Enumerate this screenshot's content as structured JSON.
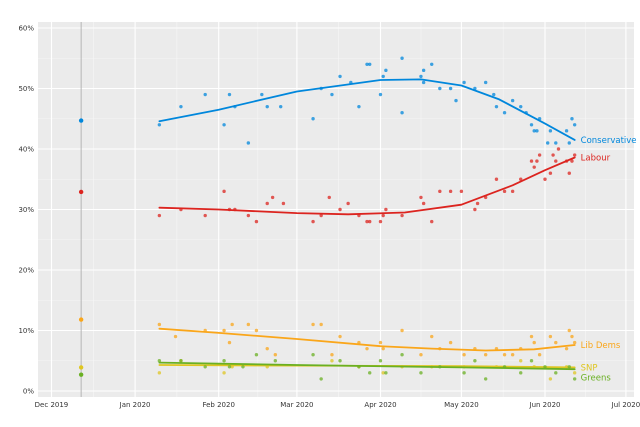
{
  "chart_data": {
    "type": "scatter",
    "title": "",
    "xlabel": "",
    "ylabel": "",
    "y_unit": "%",
    "ylim": [
      0,
      60
    ],
    "y_ticks": [
      0,
      10,
      20,
      30,
      40,
      50,
      60
    ],
    "y_tick_labels": [
      "0%",
      "10%",
      "20%",
      "30%",
      "40%",
      "50%",
      "60%"
    ],
    "xlim": [
      "2019-11-26",
      "2020-07-04"
    ],
    "x_ticks": [
      "2019-12-01",
      "2020-01-01",
      "2020-02-01",
      "2020-03-01",
      "2020-04-01",
      "2020-05-01",
      "2020-06-01",
      "2020-07-01"
    ],
    "x_tick_labels": [
      "Dec 2019",
      "Jan 2020",
      "Feb 2020",
      "Mar 2020",
      "Apr 2020",
      "May 2020",
      "Jun 2020",
      "Jul 2020"
    ],
    "reference_line": {
      "x": "2019-12-12"
    },
    "grid": true,
    "background": "#ebebeb",
    "series": [
      {
        "name": "Conservative",
        "color": "#0087dc",
        "result": {
          "x": "2019-12-12",
          "y": 44.7
        },
        "points": [
          [
            "2020-01-10",
            44
          ],
          [
            "2020-01-18",
            47
          ],
          [
            "2020-01-27",
            49
          ],
          [
            "2020-02-03",
            44
          ],
          [
            "2020-02-05",
            49
          ],
          [
            "2020-02-07",
            47
          ],
          [
            "2020-02-12",
            41
          ],
          [
            "2020-02-17",
            49
          ],
          [
            "2020-02-19",
            47
          ],
          [
            "2020-02-24",
            47
          ],
          [
            "2020-03-07",
            45
          ],
          [
            "2020-03-10",
            50
          ],
          [
            "2020-03-14",
            49
          ],
          [
            "2020-03-17",
            52
          ],
          [
            "2020-03-21",
            51
          ],
          [
            "2020-03-24",
            47
          ],
          [
            "2020-03-27",
            54
          ],
          [
            "2020-03-28",
            54
          ],
          [
            "2020-04-01",
            49
          ],
          [
            "2020-04-02",
            52
          ],
          [
            "2020-04-03",
            53
          ],
          [
            "2020-04-09",
            46
          ],
          [
            "2020-04-09",
            55
          ],
          [
            "2020-04-16",
            52
          ],
          [
            "2020-04-17",
            53
          ],
          [
            "2020-04-17",
            51
          ],
          [
            "2020-04-20",
            54
          ],
          [
            "2020-04-23",
            50
          ],
          [
            "2020-04-27",
            50
          ],
          [
            "2020-04-29",
            48
          ],
          [
            "2020-05-02",
            51
          ],
          [
            "2020-05-06",
            50
          ],
          [
            "2020-05-10",
            51
          ],
          [
            "2020-05-13",
            49
          ],
          [
            "2020-05-14",
            47
          ],
          [
            "2020-05-17",
            46
          ],
          [
            "2020-05-20",
            48
          ],
          [
            "2020-05-23",
            47
          ],
          [
            "2020-05-25",
            46
          ],
          [
            "2020-05-27",
            44
          ],
          [
            "2020-05-28",
            43
          ],
          [
            "2020-05-29",
            43
          ],
          [
            "2020-05-30",
            45
          ],
          [
            "2020-06-02",
            41
          ],
          [
            "2020-06-03",
            43
          ],
          [
            "2020-06-05",
            41
          ],
          [
            "2020-06-09",
            43
          ],
          [
            "2020-06-10",
            41
          ],
          [
            "2020-06-11",
            45
          ],
          [
            "2020-06-12",
            44
          ]
        ],
        "trend": [
          [
            "2020-01-10",
            44.6
          ],
          [
            "2020-02-01",
            46.5
          ],
          [
            "2020-03-01",
            49.5
          ],
          [
            "2020-04-01",
            51.4
          ],
          [
            "2020-04-16",
            51.5
          ],
          [
            "2020-05-01",
            50.5
          ],
          [
            "2020-05-15",
            48.2
          ],
          [
            "2020-06-01",
            44.2
          ],
          [
            "2020-06-12",
            41.5
          ]
        ]
      },
      {
        "name": "Labour",
        "color": "#dc241f",
        "result": {
          "x": "2019-12-12",
          "y": 32.9
        },
        "points": [
          [
            "2020-01-10",
            29
          ],
          [
            "2020-01-18",
            30
          ],
          [
            "2020-01-27",
            29
          ],
          [
            "2020-02-03",
            33
          ],
          [
            "2020-02-05",
            30
          ],
          [
            "2020-02-07",
            30
          ],
          [
            "2020-02-12",
            29
          ],
          [
            "2020-02-15",
            28
          ],
          [
            "2020-02-19",
            31
          ],
          [
            "2020-02-21",
            32
          ],
          [
            "2020-02-25",
            31
          ],
          [
            "2020-03-07",
            28
          ],
          [
            "2020-03-10",
            29
          ],
          [
            "2020-03-13",
            32
          ],
          [
            "2020-03-17",
            30
          ],
          [
            "2020-03-20",
            31
          ],
          [
            "2020-03-24",
            29
          ],
          [
            "2020-03-27",
            28
          ],
          [
            "2020-03-28",
            28
          ],
          [
            "2020-04-01",
            28
          ],
          [
            "2020-04-02",
            29
          ],
          [
            "2020-04-03",
            30
          ],
          [
            "2020-04-09",
            29
          ],
          [
            "2020-04-16",
            32
          ],
          [
            "2020-04-17",
            31
          ],
          [
            "2020-04-20",
            28
          ],
          [
            "2020-04-23",
            33
          ],
          [
            "2020-04-27",
            33
          ],
          [
            "2020-05-01",
            33
          ],
          [
            "2020-05-06",
            30
          ],
          [
            "2020-05-07",
            31
          ],
          [
            "2020-05-10",
            32
          ],
          [
            "2020-05-14",
            35
          ],
          [
            "2020-05-17",
            33
          ],
          [
            "2020-05-20",
            33
          ],
          [
            "2020-05-23",
            35
          ],
          [
            "2020-05-27",
            38
          ],
          [
            "2020-05-28",
            37
          ],
          [
            "2020-05-29",
            38
          ],
          [
            "2020-05-30",
            39
          ],
          [
            "2020-06-01",
            35
          ],
          [
            "2020-06-03",
            36
          ],
          [
            "2020-06-04",
            39
          ],
          [
            "2020-06-05",
            38
          ],
          [
            "2020-06-06",
            40
          ],
          [
            "2020-06-09",
            38
          ],
          [
            "2020-06-10",
            36
          ],
          [
            "2020-06-11",
            38
          ],
          [
            "2020-06-12",
            39
          ]
        ],
        "trend": [
          [
            "2020-01-10",
            30.3
          ],
          [
            "2020-02-01",
            30.0
          ],
          [
            "2020-03-01",
            29.4
          ],
          [
            "2020-03-20",
            29.2
          ],
          [
            "2020-04-10",
            29.5
          ],
          [
            "2020-05-01",
            30.8
          ],
          [
            "2020-05-20",
            34.0
          ],
          [
            "2020-06-01",
            36.5
          ],
          [
            "2020-06-12",
            38.6
          ]
        ]
      },
      {
        "name": "Lib Dems",
        "color": "#faa61a",
        "result": {
          "x": "2019-12-12",
          "y": 11.8
        },
        "points": [
          [
            "2020-01-10",
            11
          ],
          [
            "2020-01-16",
            9
          ],
          [
            "2020-01-27",
            10
          ],
          [
            "2020-02-03",
            10
          ],
          [
            "2020-02-05",
            8
          ],
          [
            "2020-02-06",
            11
          ],
          [
            "2020-02-12",
            11
          ],
          [
            "2020-02-15",
            10
          ],
          [
            "2020-02-19",
            7
          ],
          [
            "2020-02-22",
            6
          ],
          [
            "2020-03-07",
            11
          ],
          [
            "2020-03-10",
            11
          ],
          [
            "2020-03-14",
            6
          ],
          [
            "2020-03-17",
            9
          ],
          [
            "2020-03-24",
            8
          ],
          [
            "2020-03-27",
            7
          ],
          [
            "2020-04-01",
            8
          ],
          [
            "2020-04-02",
            7
          ],
          [
            "2020-04-09",
            10
          ],
          [
            "2020-04-16",
            6
          ],
          [
            "2020-04-20",
            9
          ],
          [
            "2020-04-23",
            7
          ],
          [
            "2020-04-27",
            8
          ],
          [
            "2020-05-02",
            6
          ],
          [
            "2020-05-06",
            7
          ],
          [
            "2020-05-10",
            6
          ],
          [
            "2020-05-14",
            7
          ],
          [
            "2020-05-17",
            6
          ],
          [
            "2020-05-20",
            6
          ],
          [
            "2020-05-23",
            7
          ],
          [
            "2020-05-27",
            9
          ],
          [
            "2020-05-28",
            8
          ],
          [
            "2020-05-30",
            6
          ],
          [
            "2020-06-03",
            9
          ],
          [
            "2020-06-05",
            8
          ],
          [
            "2020-06-09",
            7
          ],
          [
            "2020-06-10",
            10
          ],
          [
            "2020-06-11",
            9
          ],
          [
            "2020-06-12",
            8
          ]
        ],
        "trend": [
          [
            "2020-01-10",
            10.3
          ],
          [
            "2020-02-01",
            9.6
          ],
          [
            "2020-03-01",
            8.6
          ],
          [
            "2020-04-01",
            7.4
          ],
          [
            "2020-04-20",
            7.0
          ],
          [
            "2020-05-10",
            6.7
          ],
          [
            "2020-05-28",
            6.9
          ],
          [
            "2020-06-12",
            7.6
          ]
        ]
      },
      {
        "name": "SNP",
        "color": "#dfc621",
        "result": {
          "x": "2019-12-12",
          "y": 3.9
        },
        "points": [
          [
            "2020-01-10",
            3
          ],
          [
            "2020-01-18",
            5
          ],
          [
            "2020-02-03",
            3
          ],
          [
            "2020-02-06",
            4
          ],
          [
            "2020-02-19",
            4
          ],
          [
            "2020-03-14",
            5
          ],
          [
            "2020-03-24",
            4
          ],
          [
            "2020-04-02",
            3
          ],
          [
            "2020-04-09",
            4
          ],
          [
            "2020-04-20",
            4
          ],
          [
            "2020-05-02",
            4
          ],
          [
            "2020-05-14",
            4
          ],
          [
            "2020-05-23",
            5
          ],
          [
            "2020-05-28",
            4
          ],
          [
            "2020-06-03",
            2
          ],
          [
            "2020-06-09",
            4
          ],
          [
            "2020-06-12",
            3
          ]
        ],
        "trend": [
          [
            "2020-01-10",
            4.3
          ],
          [
            "2020-03-01",
            4.2
          ],
          [
            "2020-05-01",
            4.1
          ],
          [
            "2020-06-12",
            3.9
          ]
        ]
      },
      {
        "name": "Greens",
        "color": "#6ab023",
        "result": {
          "x": "2019-12-12",
          "y": 2.7
        },
        "points": [
          [
            "2020-01-10",
            5
          ],
          [
            "2020-01-18",
            5
          ],
          [
            "2020-01-27",
            4
          ],
          [
            "2020-02-03",
            5
          ],
          [
            "2020-02-05",
            4
          ],
          [
            "2020-02-10",
            4
          ],
          [
            "2020-02-15",
            6
          ],
          [
            "2020-02-22",
            5
          ],
          [
            "2020-03-07",
            6
          ],
          [
            "2020-03-10",
            2
          ],
          [
            "2020-03-17",
            5
          ],
          [
            "2020-03-24",
            4
          ],
          [
            "2020-03-28",
            3
          ],
          [
            "2020-04-01",
            5
          ],
          [
            "2020-04-03",
            3
          ],
          [
            "2020-04-09",
            6
          ],
          [
            "2020-04-16",
            3
          ],
          [
            "2020-04-23",
            4
          ],
          [
            "2020-05-02",
            3
          ],
          [
            "2020-05-06",
            5
          ],
          [
            "2020-05-10",
            2
          ],
          [
            "2020-05-17",
            4
          ],
          [
            "2020-05-23",
            3
          ],
          [
            "2020-05-27",
            5
          ],
          [
            "2020-06-01",
            4
          ],
          [
            "2020-06-05",
            3
          ],
          [
            "2020-06-10",
            4
          ],
          [
            "2020-06-12",
            2
          ]
        ],
        "trend": [
          [
            "2020-01-10",
            4.7
          ],
          [
            "2020-03-01",
            4.3
          ],
          [
            "2020-05-01",
            3.9
          ],
          [
            "2020-06-12",
            3.6
          ]
        ]
      }
    ]
  }
}
